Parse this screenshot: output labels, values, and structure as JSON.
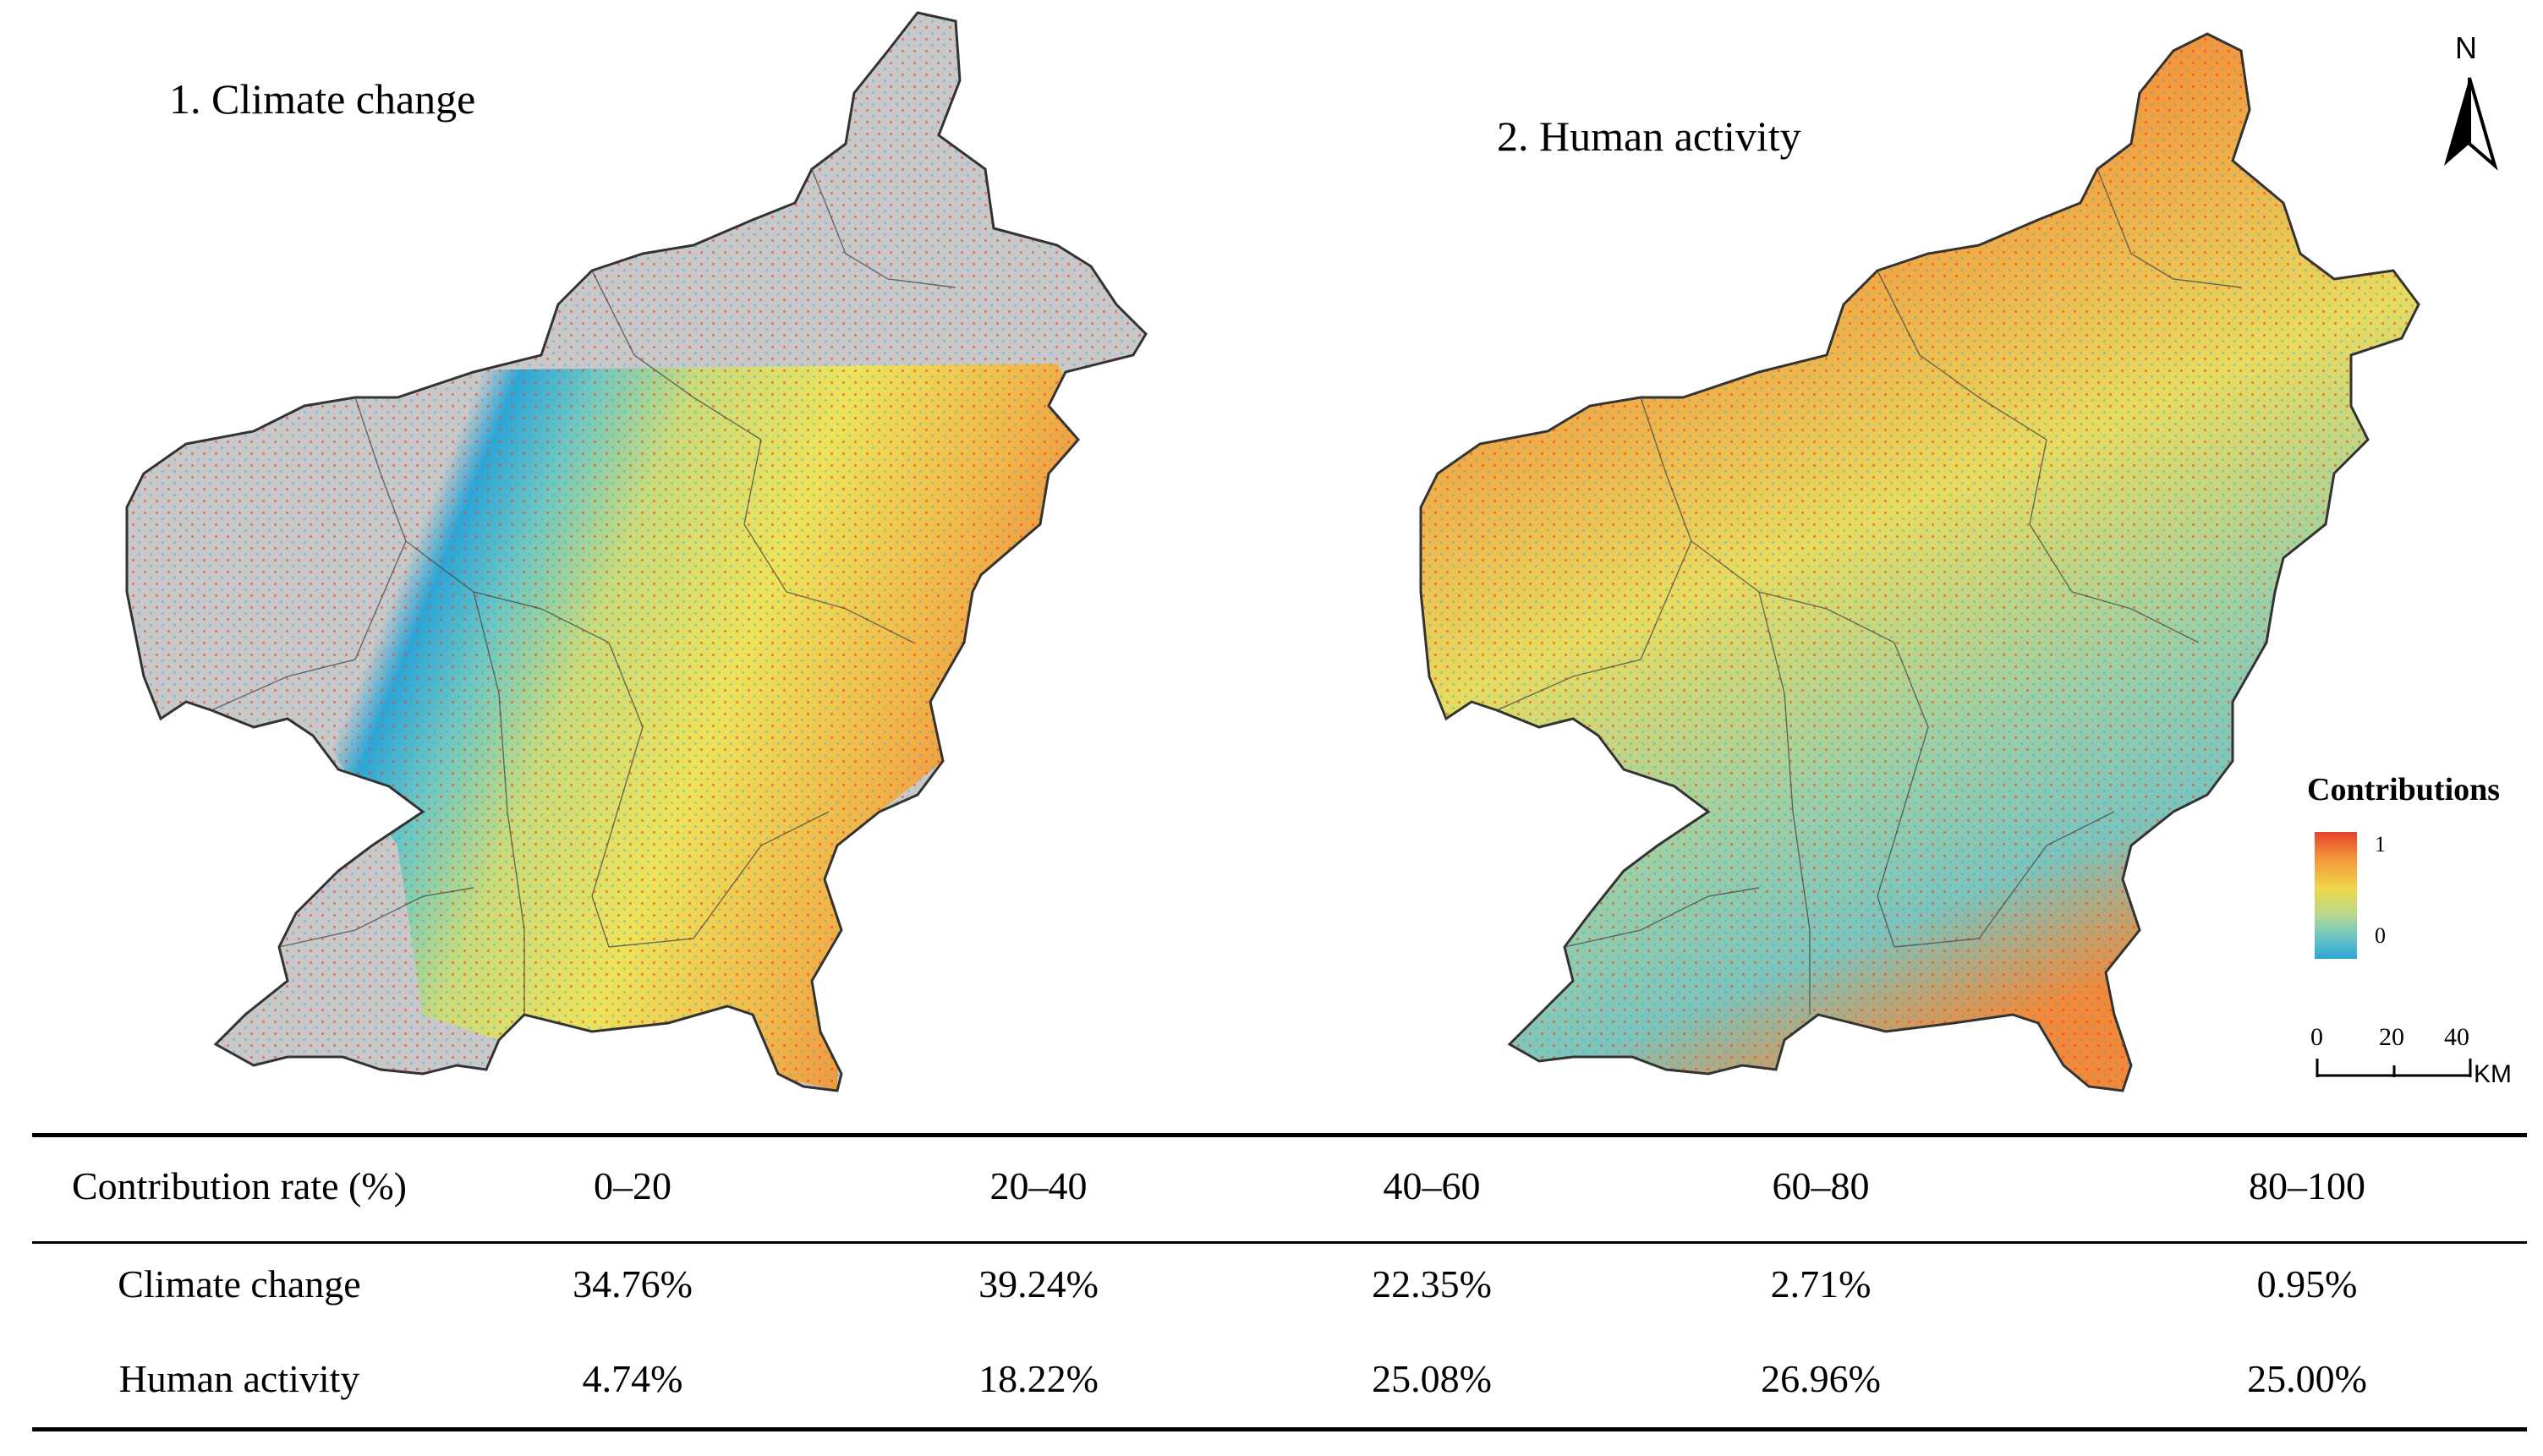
{
  "maps": {
    "climate": {
      "title": "1. Climate change"
    },
    "human": {
      "title": "2. Human activity"
    }
  },
  "north_arrow": {
    "label": "N"
  },
  "legend": {
    "title": "Contributions",
    "max_label": "1",
    "min_label": "0",
    "colors": [
      "#e8432a",
      "#f39a3c",
      "#f0d84a",
      "#b7d98f",
      "#6ec7c2",
      "#2da5d6"
    ]
  },
  "scale_bar": {
    "ticks": [
      "0",
      "20",
      "40"
    ],
    "unit": "KM"
  },
  "background_color": "#c8c8c8",
  "table": {
    "header": [
      "Contribution rate (%)",
      "0‒20",
      "20‒40",
      "40‒60",
      "60‒80",
      "80‒100"
    ],
    "rows": [
      {
        "label": "Climate change",
        "values": [
          "34.76%",
          "39.24%",
          "22.35%",
          "2.71%",
          "0.95%"
        ]
      },
      {
        "label": "Human activity",
        "values": [
          "4.74%",
          "18.22%",
          "25.08%",
          "26.96%",
          "25.00%"
        ]
      }
    ]
  }
}
